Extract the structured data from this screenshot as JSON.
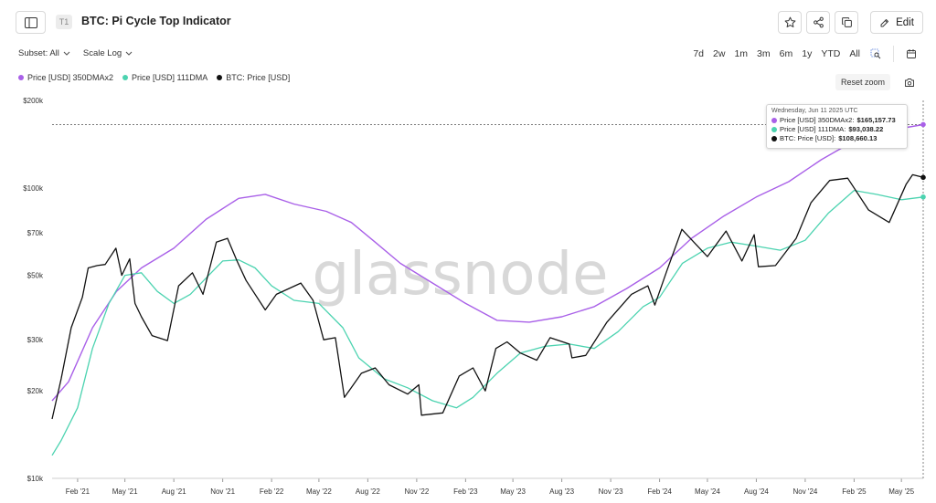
{
  "header": {
    "tier_badge": "T1",
    "title": "BTC: Pi Cycle Top Indicator",
    "edit_label": "Edit"
  },
  "filters": {
    "subset": "Subset: All",
    "scale": "Scale Log"
  },
  "ranges": [
    "7d",
    "2w",
    "1m",
    "3m",
    "6m",
    "1y",
    "YTD",
    "All"
  ],
  "reset_zoom": "Reset zoom",
  "icons": {
    "sidebar": "sidebar-icon",
    "star": "star-icon",
    "share": "share-icon",
    "copy": "copy-icon",
    "edit": "pencil-icon",
    "zoom": "zoom-icon",
    "calendar": "calendar-icon",
    "camera": "camera-icon"
  },
  "colors": {
    "dma350x2": "#a960e8",
    "dma111": "#4cd3b0",
    "price": "#111111"
  },
  "tooltip": {
    "date": "Wednesday, Jun 11 2025 UTC",
    "rows": [
      {
        "label": "Price [USD] 350DMAx2:",
        "value": "$165,157.73"
      },
      {
        "label": "Price [USD] 111DMA:",
        "value": "$93,038.22"
      },
      {
        "label": "BTC: Price [USD]:",
        "value": "$108,660.13"
      }
    ]
  },
  "watermark": "glassnode",
  "chart_data": {
    "type": "line",
    "scale": "log",
    "ylim": [
      10000,
      200000
    ],
    "yticks": [
      {
        "value": 200000,
        "label": "$200k"
      },
      {
        "value": 100000,
        "label": "$100k"
      },
      {
        "value": 70000,
        "label": "$70k"
      },
      {
        "value": 50000,
        "label": "$50k"
      },
      {
        "value": 30000,
        "label": "$30k"
      },
      {
        "value": 20000,
        "label": "$20k"
      },
      {
        "value": 10000,
        "label": "$10k"
      }
    ],
    "xlim": [
      "2020-12-15",
      "2025-06-11"
    ],
    "xticks": [
      {
        "date": "2021-02-01",
        "label": "Feb '21"
      },
      {
        "date": "2021-05-01",
        "label": "May '21"
      },
      {
        "date": "2021-08-01",
        "label": "Aug '21"
      },
      {
        "date": "2021-11-01",
        "label": "Nov '21"
      },
      {
        "date": "2022-02-01",
        "label": "Feb '22"
      },
      {
        "date": "2022-05-01",
        "label": "May '22"
      },
      {
        "date": "2022-08-01",
        "label": "Aug '22"
      },
      {
        "date": "2022-11-01",
        "label": "Nov '22"
      },
      {
        "date": "2023-02-01",
        "label": "Feb '23"
      },
      {
        "date": "2023-05-01",
        "label": "May '23"
      },
      {
        "date": "2023-08-01",
        "label": "Aug '23"
      },
      {
        "date": "2023-11-01",
        "label": "Nov '23"
      },
      {
        "date": "2024-02-01",
        "label": "Feb '24"
      },
      {
        "date": "2024-05-01",
        "label": "May '24"
      },
      {
        "date": "2024-08-01",
        "label": "Aug '24"
      },
      {
        "date": "2024-11-01",
        "label": "Nov '24"
      },
      {
        "date": "2025-02-01",
        "label": "Feb '25"
      },
      {
        "date": "2025-05-01",
        "label": "May '25"
      }
    ],
    "legend_position": "top-left",
    "grid": false,
    "series": [
      {
        "name": "Price [USD] 350DMAx2",
        "color": "#a960e8",
        "points": [
          [
            "2020-12-15",
            18500
          ],
          [
            "2021-01-15",
            21500
          ],
          [
            "2021-03-01",
            33000
          ],
          [
            "2021-04-15",
            44000
          ],
          [
            "2021-06-01",
            53000
          ],
          [
            "2021-08-01",
            62000
          ],
          [
            "2021-10-01",
            78000
          ],
          [
            "2021-12-01",
            92000
          ],
          [
            "2022-01-20",
            95000
          ],
          [
            "2022-03-15",
            88000
          ],
          [
            "2022-05-15",
            83000
          ],
          [
            "2022-07-01",
            76000
          ],
          [
            "2022-08-15",
            65000
          ],
          [
            "2022-10-01",
            55000
          ],
          [
            "2022-12-01",
            47000
          ],
          [
            "2023-02-01",
            40000
          ],
          [
            "2023-04-01",
            35000
          ],
          [
            "2023-06-01",
            34500
          ],
          [
            "2023-08-01",
            36000
          ],
          [
            "2023-10-01",
            39000
          ],
          [
            "2023-12-01",
            45000
          ],
          [
            "2024-02-01",
            53000
          ],
          [
            "2024-04-01",
            67000
          ],
          [
            "2024-06-01",
            80000
          ],
          [
            "2024-08-01",
            93000
          ],
          [
            "2024-10-01",
            105000
          ],
          [
            "2024-12-01",
            125000
          ],
          [
            "2025-02-01",
            145000
          ],
          [
            "2025-04-01",
            157000
          ],
          [
            "2025-06-11",
            165157.73
          ]
        ]
      },
      {
        "name": "Price [USD] 111DMA",
        "color": "#4cd3b0",
        "points": [
          [
            "2020-12-15",
            12000
          ],
          [
            "2021-01-01",
            13500
          ],
          [
            "2021-02-01",
            17500
          ],
          [
            "2021-03-01",
            28000
          ],
          [
            "2021-04-01",
            40000
          ],
          [
            "2021-05-01",
            50000
          ],
          [
            "2021-06-01",
            51000
          ],
          [
            "2021-07-01",
            44000
          ],
          [
            "2021-08-01",
            40000
          ],
          [
            "2021-09-01",
            43000
          ],
          [
            "2021-10-01",
            49000
          ],
          [
            "2021-11-01",
            56000
          ],
          [
            "2021-12-01",
            56500
          ],
          [
            "2022-01-01",
            53000
          ],
          [
            "2022-02-01",
            46000
          ],
          [
            "2022-03-15",
            41000
          ],
          [
            "2022-05-01",
            40000
          ],
          [
            "2022-06-15",
            33000
          ],
          [
            "2022-07-15",
            26000
          ],
          [
            "2022-09-01",
            22000
          ],
          [
            "2022-10-15",
            20500
          ],
          [
            "2022-12-01",
            18500
          ],
          [
            "2023-01-15",
            17500
          ],
          [
            "2023-02-15",
            19000
          ],
          [
            "2023-04-01",
            23000
          ],
          [
            "2023-05-15",
            27000
          ],
          [
            "2023-07-01",
            28500
          ],
          [
            "2023-08-15",
            29000
          ],
          [
            "2023-10-01",
            28000
          ],
          [
            "2023-11-15",
            32000
          ],
          [
            "2024-01-01",
            39000
          ],
          [
            "2024-02-01",
            42000
          ],
          [
            "2024-03-15",
            55000
          ],
          [
            "2024-05-01",
            62000
          ],
          [
            "2024-06-15",
            65000
          ],
          [
            "2024-08-01",
            63000
          ],
          [
            "2024-09-15",
            61000
          ],
          [
            "2024-11-01",
            66000
          ],
          [
            "2024-12-15",
            82000
          ],
          [
            "2025-02-01",
            98000
          ],
          [
            "2025-03-15",
            95000
          ],
          [
            "2025-05-01",
            91000
          ],
          [
            "2025-06-11",
            93038.22
          ]
        ]
      },
      {
        "name": "BTC: Price [USD]",
        "color": "#111111",
        "points": [
          [
            "2020-12-15",
            16000
          ],
          [
            "2021-01-01",
            22000
          ],
          [
            "2021-01-20",
            33000
          ],
          [
            "2021-02-10",
            42000
          ],
          [
            "2021-02-21",
            53000
          ],
          [
            "2021-03-10",
            54000
          ],
          [
            "2021-03-25",
            54500
          ],
          [
            "2021-04-14",
            62000
          ],
          [
            "2021-04-25",
            50000
          ],
          [
            "2021-05-10",
            57000
          ],
          [
            "2021-05-20",
            40000
          ],
          [
            "2021-06-01",
            36000
          ],
          [
            "2021-06-21",
            31000
          ],
          [
            "2021-07-20",
            29800
          ],
          [
            "2021-08-10",
            46000
          ],
          [
            "2021-09-05",
            51000
          ],
          [
            "2021-09-25",
            43000
          ],
          [
            "2021-10-20",
            65000
          ],
          [
            "2021-11-10",
            67000
          ],
          [
            "2021-11-28",
            56000
          ],
          [
            "2021-12-15",
            48000
          ],
          [
            "2022-01-20",
            38000
          ],
          [
            "2022-02-10",
            43000
          ],
          [
            "2022-03-28",
            47000
          ],
          [
            "2022-04-20",
            41000
          ],
          [
            "2022-05-10",
            30000
          ],
          [
            "2022-06-01",
            30500
          ],
          [
            "2022-06-18",
            19000
          ],
          [
            "2022-07-20",
            23000
          ],
          [
            "2022-08-15",
            24000
          ],
          [
            "2022-09-10",
            21000
          ],
          [
            "2022-10-15",
            19500
          ],
          [
            "2022-11-05",
            21000
          ],
          [
            "2022-11-10",
            16500
          ],
          [
            "2022-12-20",
            16800
          ],
          [
            "2023-01-20",
            22500
          ],
          [
            "2023-02-15",
            24000
          ],
          [
            "2023-03-10",
            20000
          ],
          [
            "2023-03-30",
            28000
          ],
          [
            "2023-04-20",
            29500
          ],
          [
            "2023-05-15",
            27000
          ],
          [
            "2023-06-15",
            25500
          ],
          [
            "2023-07-10",
            30500
          ],
          [
            "2023-08-15",
            29000
          ],
          [
            "2023-08-20",
            26000
          ],
          [
            "2023-09-15",
            26500
          ],
          [
            "2023-10-25",
            34500
          ],
          [
            "2023-12-10",
            43000
          ],
          [
            "2024-01-10",
            46000
          ],
          [
            "2024-01-23",
            39500
          ],
          [
            "2024-02-15",
            52000
          ],
          [
            "2024-03-14",
            72000
          ],
          [
            "2024-05-01",
            58000
          ],
          [
            "2024-06-05",
            71000
          ],
          [
            "2024-07-05",
            56000
          ],
          [
            "2024-07-28",
            69000
          ],
          [
            "2024-08-05",
            53500
          ],
          [
            "2024-09-06",
            54000
          ],
          [
            "2024-10-15",
            67000
          ],
          [
            "2024-11-12",
            89000
          ],
          [
            "2024-12-17",
            106000
          ],
          [
            "2025-01-20",
            108000
          ],
          [
            "2025-02-28",
            84000
          ],
          [
            "2025-04-08",
            76000
          ],
          [
            "2025-05-10",
            103000
          ],
          [
            "2025-05-22",
            111000
          ],
          [
            "2025-06-11",
            108660.13
          ]
        ]
      }
    ]
  }
}
